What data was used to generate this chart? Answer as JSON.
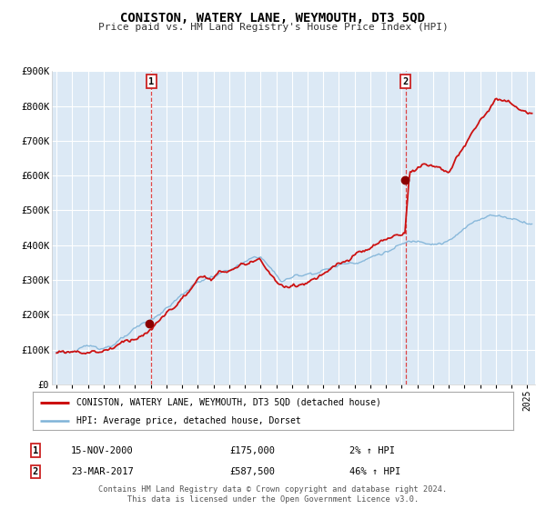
{
  "title": "CONISTON, WATERY LANE, WEYMOUTH, DT3 5QD",
  "subtitle": "Price paid vs. HM Land Registry's House Price Index (HPI)",
  "ylim": [
    0,
    900000
  ],
  "yticks": [
    0,
    100000,
    200000,
    300000,
    400000,
    500000,
    600000,
    700000,
    800000,
    900000
  ],
  "ytick_labels": [
    "£0",
    "£100K",
    "£200K",
    "£300K",
    "£400K",
    "£500K",
    "£600K",
    "£700K",
    "£800K",
    "£900K"
  ],
  "x_start_year": 1995,
  "x_end_year": 2025,
  "bg_color": "#dce9f5",
  "fig_bg_color": "#ffffff",
  "grid_color": "#ffffff",
  "hpi_color": "#7fb3d8",
  "price_color": "#cc1111",
  "marker_color": "#8b0000",
  "sale1_year": 2000.88,
  "sale1_price": 175000,
  "sale2_year": 2017.22,
  "sale2_price": 587500,
  "vline1_year": 2001.05,
  "vline2_year": 2017.25,
  "legend_line1": "CONISTON, WATERY LANE, WEYMOUTH, DT3 5QD (detached house)",
  "legend_line2": "HPI: Average price, detached house, Dorset",
  "footer_line1": "Contains HM Land Registry data © Crown copyright and database right 2024.",
  "footer_line2": "This data is licensed under the Open Government Licence v3.0.",
  "table_row1_date": "15-NOV-2000",
  "table_row1_price": "£175,000",
  "table_row1_hpi": "2% ↑ HPI",
  "table_row2_date": "23-MAR-2017",
  "table_row2_price": "£587,500",
  "table_row2_hpi": "46% ↑ HPI"
}
